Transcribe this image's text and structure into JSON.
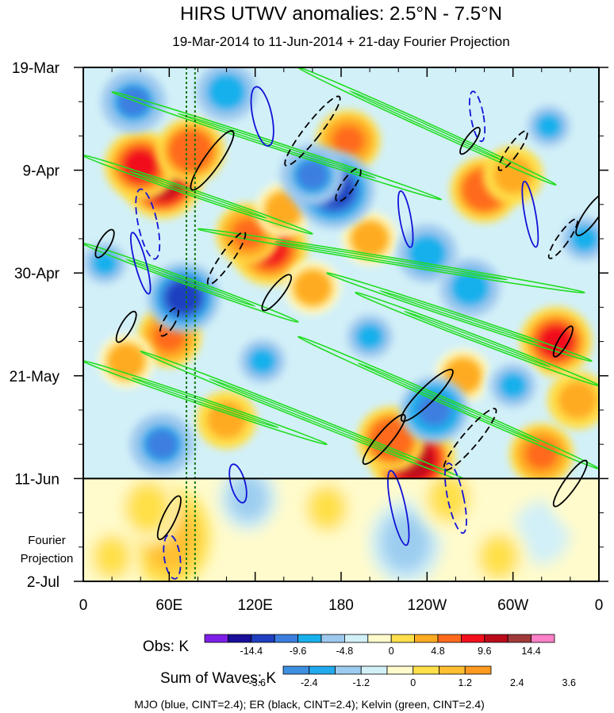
{
  "chart_data": {
    "type": "heatmap",
    "title": "HIRS UTWV anomalies: 2.5°N - 7.5°N",
    "subtitle": "19-Mar-2014 to 11-Jun-2014 + 21-day Fourier Projection",
    "y_tick_labels": [
      "19-Mar",
      "9-Apr",
      "30-Apr",
      "21-May",
      "11-Jun",
      "2-Jul"
    ],
    "x_tick_labels": [
      "0",
      "60E",
      "120E",
      "180",
      "120W",
      "60W",
      "0"
    ],
    "x_tick_lon": [
      0,
      60,
      120,
      180,
      240,
      300,
      360
    ],
    "xlim": [
      0,
      360
    ],
    "y_tick_day": [
      0,
      21,
      42,
      63,
      84,
      105
    ],
    "ylim_days": [
      0,
      105
    ],
    "observation_end_day": 84,
    "projection_label": [
      "Fourier",
      "Projection"
    ],
    "reference_lines_lon": [
      72,
      78
    ],
    "obs_colorbar": {
      "label": "Obs: K",
      "tick_labels": [
        "-14.4",
        "-9.6",
        "-4.8",
        "0",
        "4.8",
        "9.6",
        "14.4"
      ],
      "colors": [
        "#7e1fe8",
        "#1a0f99",
        "#1f3fc0",
        "#3d7fe0",
        "#18b0ec",
        "#9ec8ee",
        "#d2f0f8",
        "#fffbcc",
        "#ffe04a",
        "#ffab22",
        "#ff6a1c",
        "#f2101c",
        "#bb0a1a",
        "#a33a3a",
        "#ff80c8"
      ]
    },
    "waves_colorbar": {
      "label": "Sum of Waves: K",
      "tick_labels": [
        "-3.6",
        "-2.4",
        "-1.2",
        "0",
        "1.2",
        "2.4",
        "3.6"
      ],
      "colors": [
        "#3d8fe0",
        "#22aaee",
        "#9ccdf0",
        "#d2f0f8",
        "#fffbcc",
        "#ffe04a",
        "#ffbf30",
        "#ff9a20"
      ]
    },
    "legend_text": "MJO (blue, CINT=2.4); ER (black, CINT=2.4); Kelvin (green, CINT=2.4)",
    "series": [
      {
        "name": "MJO",
        "color": "#1212d8"
      },
      {
        "name": "ER",
        "color": "#000000"
      },
      {
        "name": "Kelvin",
        "color": "#22dd22"
      }
    ],
    "obs_anomaly_blobs": [
      {
        "lon": 55,
        "day": 23,
        "value": 12
      },
      {
        "lon": 40,
        "day": 20,
        "value": 10
      },
      {
        "lon": 75,
        "day": 17,
        "value": 9
      },
      {
        "lon": 130,
        "day": 37,
        "value": 11
      },
      {
        "lon": 115,
        "day": 34,
        "value": 8
      },
      {
        "lon": 140,
        "day": 29,
        "value": 6
      },
      {
        "lon": 230,
        "day": 80,
        "value": 13
      },
      {
        "lon": 215,
        "day": 76,
        "value": 9
      },
      {
        "lon": 330,
        "day": 56,
        "value": 10
      },
      {
        "lon": 345,
        "day": 68,
        "value": 7
      },
      {
        "lon": 280,
        "day": 25,
        "value": 9
      },
      {
        "lon": 300,
        "day": 22,
        "value": 7
      },
      {
        "lon": 185,
        "day": 15,
        "value": 8
      },
      {
        "lon": 60,
        "day": 55,
        "value": 8
      },
      {
        "lon": 265,
        "day": 63,
        "value": 6
      },
      {
        "lon": 100,
        "day": 72,
        "value": 7
      },
      {
        "lon": 320,
        "day": 79,
        "value": 8
      },
      {
        "lon": 160,
        "day": 45,
        "value": 6
      },
      {
        "lon": 30,
        "day": 60,
        "value": 6
      },
      {
        "lon": 200,
        "day": 35,
        "value": 6
      },
      {
        "lon": 175,
        "day": 25,
        "value": -12
      },
      {
        "lon": 160,
        "day": 22,
        "value": -8
      },
      {
        "lon": 70,
        "day": 47,
        "value": -10
      },
      {
        "lon": 245,
        "day": 70,
        "value": -9
      },
      {
        "lon": 35,
        "day": 7,
        "value": -8
      },
      {
        "lon": 100,
        "day": 5,
        "value": -7
      },
      {
        "lon": 270,
        "day": 45,
        "value": -7
      },
      {
        "lon": 200,
        "day": 55,
        "value": -6
      },
      {
        "lon": 300,
        "day": 65,
        "value": -6
      },
      {
        "lon": 350,
        "day": 35,
        "value": -6
      },
      {
        "lon": 125,
        "day": 60,
        "value": -6
      },
      {
        "lon": 55,
        "day": 77,
        "value": -8
      },
      {
        "lon": 240,
        "day": 38,
        "value": -7
      },
      {
        "lon": 15,
        "day": 40,
        "value": -5
      },
      {
        "lon": 325,
        "day": 12,
        "value": -5
      }
    ],
    "projection_blobs": [
      {
        "lon": 60,
        "day": 96,
        "value": 2.8
      },
      {
        "lon": 45,
        "day": 90,
        "value": 1.8
      },
      {
        "lon": 225,
        "day": 97,
        "value": -2.2
      },
      {
        "lon": 170,
        "day": 90,
        "value": 1.3
      },
      {
        "lon": 255,
        "day": 88,
        "value": 1.5
      },
      {
        "lon": 320,
        "day": 95,
        "value": -1.2
      },
      {
        "lon": 115,
        "day": 88,
        "value": -1.3
      },
      {
        "lon": 20,
        "day": 100,
        "value": 1.2
      },
      {
        "lon": 290,
        "day": 100,
        "value": 1.3
      },
      {
        "lon": 345,
        "day": 88,
        "value": 1.0
      }
    ],
    "mjo_contours": [
      {
        "lon": 125,
        "day": 10,
        "rx": 12,
        "ry": 38,
        "rot": -12,
        "dashed": false
      },
      {
        "lon": 40,
        "day": 40,
        "rx": 7,
        "ry": 40,
        "rot": -15,
        "dashed": false
      },
      {
        "lon": 225,
        "day": 31,
        "rx": 7,
        "ry": 36,
        "rot": -10,
        "dashed": false
      },
      {
        "lon": 312,
        "day": 30,
        "rx": 7,
        "ry": 42,
        "rot": -10,
        "dashed": false
      },
      {
        "lon": 220,
        "day": 90,
        "rx": 9,
        "ry": 48,
        "rot": -12,
        "dashed": false
      },
      {
        "lon": 108,
        "day": 85,
        "rx": 9,
        "ry": 25,
        "rot": -15,
        "dashed": false
      },
      {
        "lon": 45,
        "day": 32,
        "rx": 12,
        "ry": 45,
        "rot": -12,
        "dashed": true
      },
      {
        "lon": 275,
        "day": 10,
        "rx": 8,
        "ry": 32,
        "rot": -10,
        "dashed": true
      },
      {
        "lon": 260,
        "day": 88,
        "rx": 10,
        "ry": 45,
        "rot": -12,
        "dashed": true
      },
      {
        "lon": 62,
        "day": 100,
        "rx": 10,
        "ry": 28,
        "rot": -8,
        "dashed": true
      }
    ],
    "er_contours": [
      {
        "lon": 90,
        "day": 19,
        "rx": 10,
        "ry": 45,
        "rot": 35,
        "dashed": false
      },
      {
        "lon": 135,
        "day": 46,
        "rx": 8,
        "ry": 28,
        "rot": 38,
        "dashed": false
      },
      {
        "lon": 240,
        "day": 67,
        "rx": 10,
        "ry": 45,
        "rot": 45,
        "dashed": false
      },
      {
        "lon": 355,
        "day": 30,
        "rx": 9,
        "ry": 32,
        "rot": 35,
        "dashed": false
      },
      {
        "lon": 15,
        "day": 36,
        "rx": 7,
        "ry": 20,
        "rot": 30,
        "dashed": false
      },
      {
        "lon": 210,
        "day": 76,
        "rx": 9,
        "ry": 40,
        "rot": 40,
        "dashed": false
      },
      {
        "lon": 340,
        "day": 85,
        "rx": 8,
        "ry": 35,
        "rot": 35,
        "dashed": false
      },
      {
        "lon": 60,
        "day": 92,
        "rx": 8,
        "ry": 30,
        "rot": 25,
        "dashed": false
      },
      {
        "lon": 30,
        "day": 53,
        "rx": 7,
        "ry": 22,
        "rot": 30,
        "dashed": false
      },
      {
        "lon": 270,
        "day": 15,
        "rx": 6,
        "ry": 20,
        "rot": 35,
        "dashed": false
      },
      {
        "lon": 335,
        "day": 56,
        "rx": 6,
        "ry": 22,
        "rot": 30,
        "dashed": false
      },
      {
        "lon": 160,
        "day": 13,
        "rx": 10,
        "ry": 55,
        "rot": 38,
        "dashed": true
      },
      {
        "lon": 100,
        "day": 39,
        "rx": 8,
        "ry": 40,
        "rot": 35,
        "dashed": true
      },
      {
        "lon": 270,
        "day": 76,
        "rx": 10,
        "ry": 50,
        "rot": 40,
        "dashed": true
      },
      {
        "lon": 300,
        "day": 17,
        "rx": 7,
        "ry": 30,
        "rot": 35,
        "dashed": true
      },
      {
        "lon": 60,
        "day": 52,
        "rx": 7,
        "ry": 20,
        "rot": 30,
        "dashed": true
      },
      {
        "lon": 185,
        "day": 24,
        "rx": 8,
        "ry": 25,
        "rot": 35,
        "dashed": true
      },
      {
        "lon": 335,
        "day": 35,
        "rx": 7,
        "ry": 30,
        "rot": 35,
        "dashed": true
      }
    ],
    "kelvin_bands": [
      {
        "lon0": 0,
        "day0": 36,
        "lon1": 150,
        "day1": 52
      },
      {
        "lon0": 150,
        "day0": 0,
        "lon1": 330,
        "day1": 24
      },
      {
        "lon0": 20,
        "day0": 5,
        "lon1": 250,
        "day1": 27
      },
      {
        "lon0": 0,
        "day0": 60,
        "lon1": 170,
        "day1": 77
      },
      {
        "lon0": 170,
        "day0": 42,
        "lon1": 355,
        "day1": 60
      },
      {
        "lon0": 190,
        "day0": 46,
        "lon1": 360,
        "day1": 65
      },
      {
        "lon0": 80,
        "day0": 33,
        "lon1": 350,
        "day1": 46
      },
      {
        "lon0": 150,
        "day0": 55,
        "lon1": 360,
        "day1": 82
      },
      {
        "lon0": 0,
        "day0": 18,
        "lon1": 160,
        "day1": 34
      },
      {
        "lon0": 40,
        "day0": 58,
        "lon1": 280,
        "day1": 86
      }
    ]
  }
}
